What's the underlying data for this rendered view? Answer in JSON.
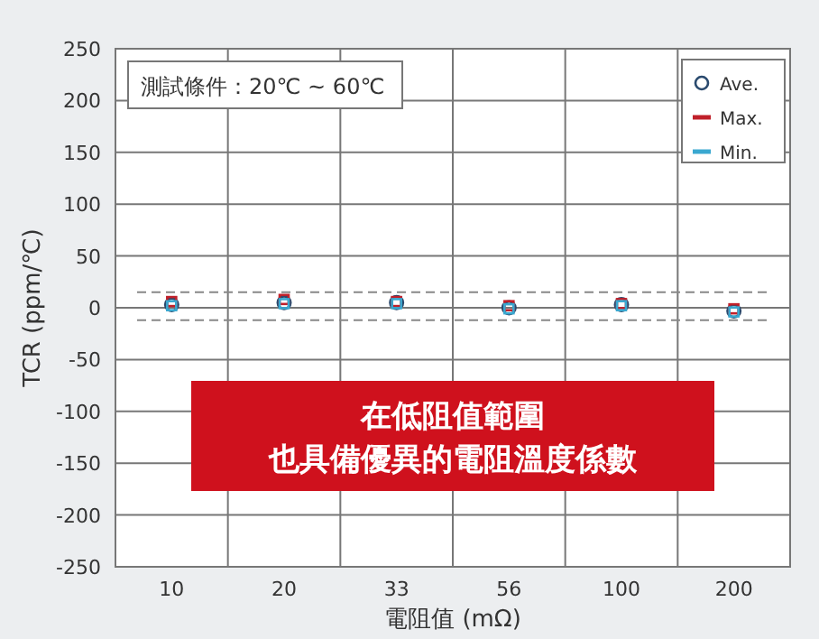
{
  "chart_data": {
    "type": "scatter",
    "xlabel": "電阻值 (mΩ)",
    "ylabel": "TCR (ppm/℃)",
    "categories": [
      "10",
      "20",
      "33",
      "56",
      "100",
      "200"
    ],
    "series": [
      {
        "name": "Ave.",
        "color": "#2a4a6e",
        "marker": "circle",
        "values": [
          3,
          5,
          5,
          0,
          3,
          -3
        ]
      },
      {
        "name": "Max.",
        "color": "#c0202a",
        "marker": "square",
        "values": [
          6,
          8,
          6,
          2,
          4,
          -1
        ]
      },
      {
        "name": "Min.",
        "color": "#3aa8d0",
        "marker": "square",
        "values": [
          2,
          4,
          4,
          -1,
          2,
          -4
        ]
      }
    ],
    "ylim": [
      -250,
      250
    ],
    "yticks": [
      -250,
      -200,
      -150,
      -100,
      -50,
      0,
      50,
      100,
      150,
      200,
      250
    ],
    "grid": true,
    "legend": "top right",
    "ref_lines": [
      {
        "axis": "y",
        "value": 15,
        "color": "#888888",
        "line_style": "dashed"
      },
      {
        "axis": "y",
        "value": -12,
        "color": "#888888",
        "line_style": "dashed"
      }
    ],
    "annotations": [
      "測試條件：20℃ ~ 60℃",
      "在低阻值範圍",
      "也具備優異的電阻溫度係數"
    ]
  }
}
